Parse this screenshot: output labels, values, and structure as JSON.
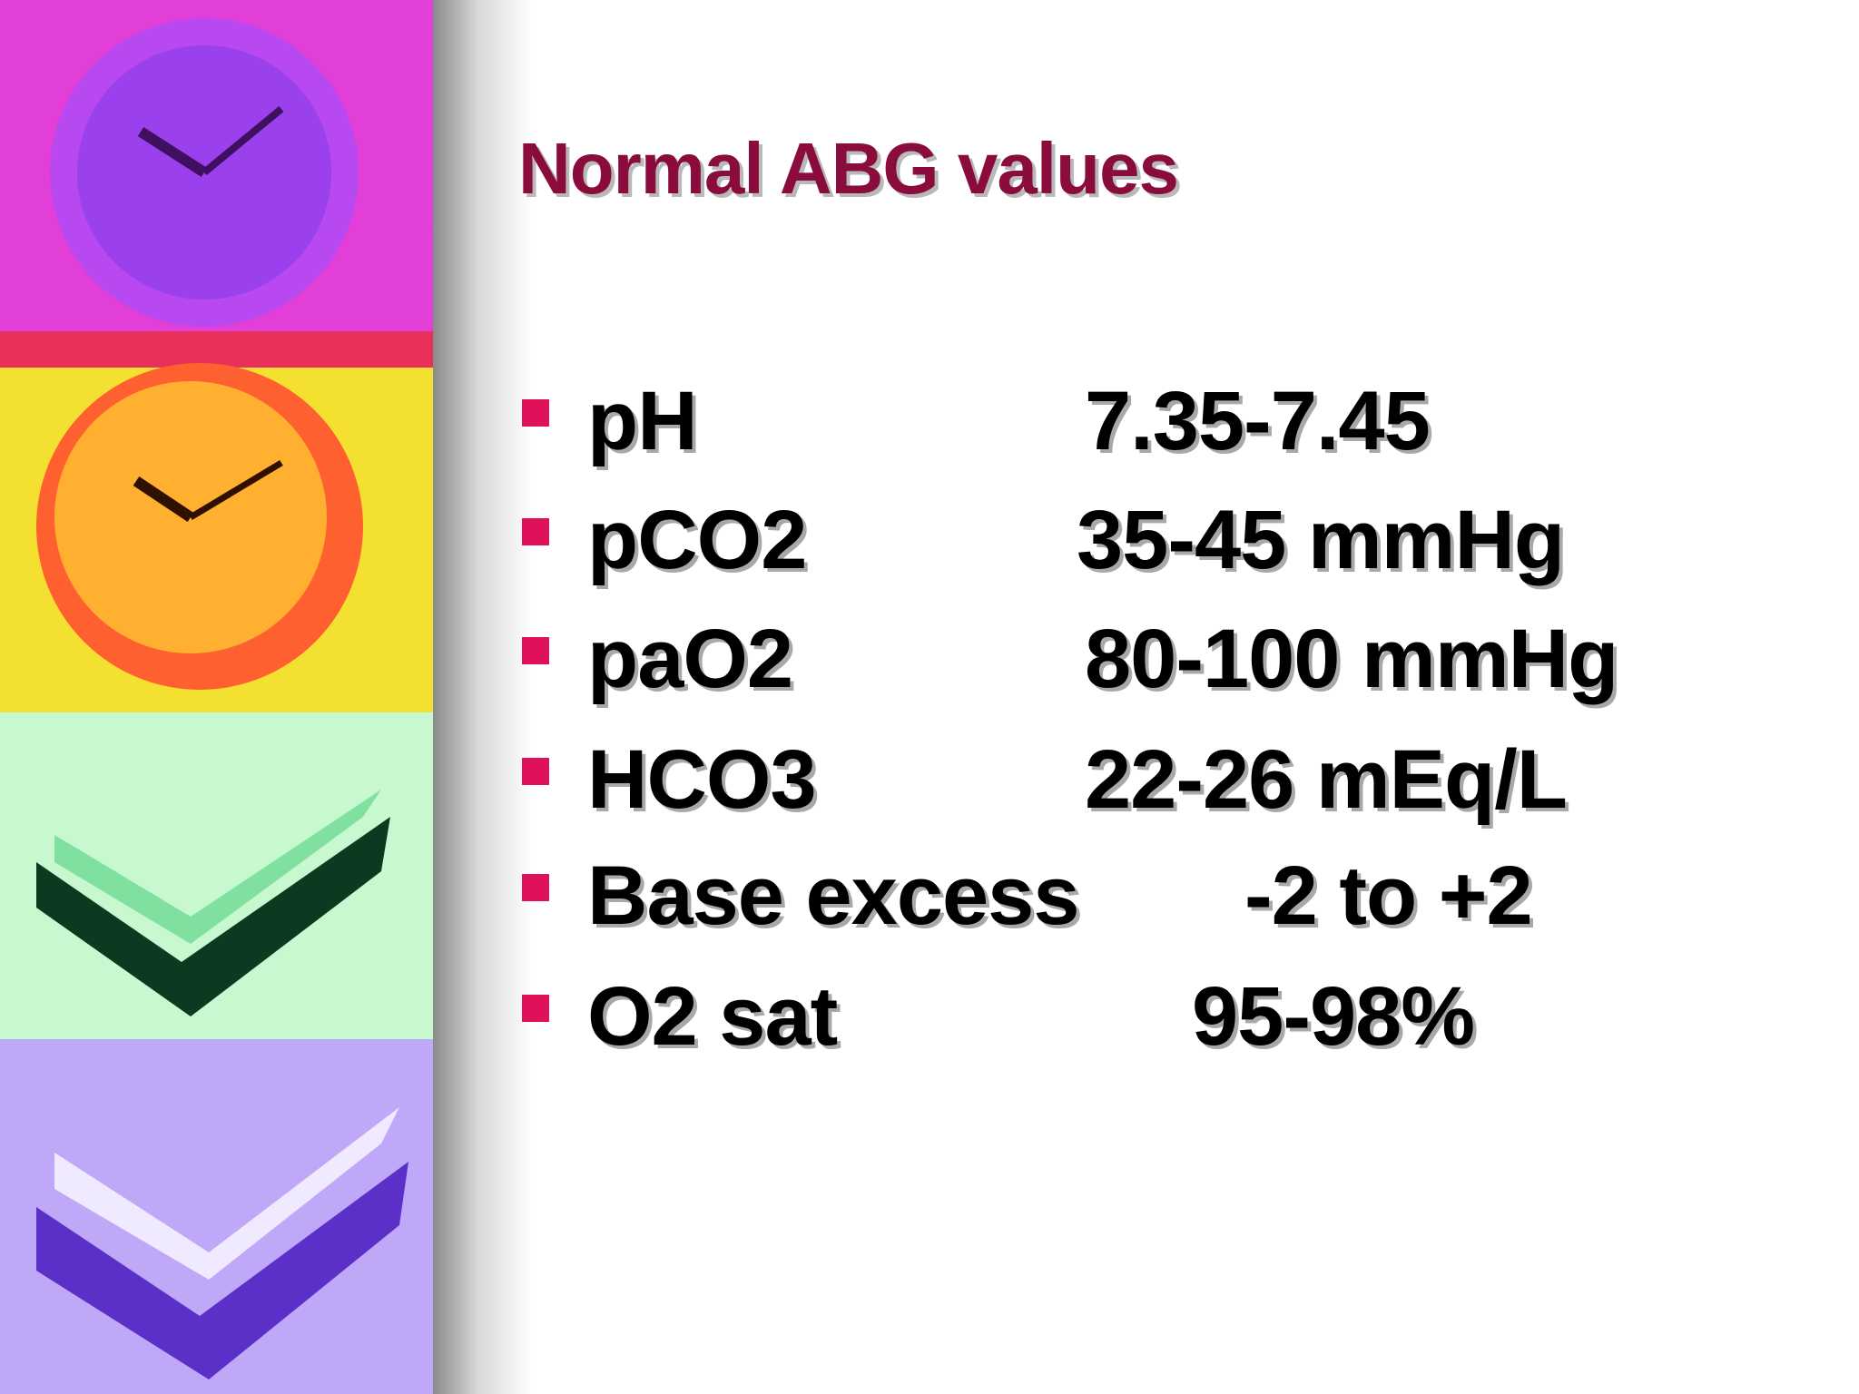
{
  "slide": {
    "title": "Normal ABG values",
    "items": [
      {
        "label": "pH",
        "value": "7.35-7.45"
      },
      {
        "label": "pCO2",
        "value": "35-45 mmHg"
      },
      {
        "label": "paO2",
        "value": "80-100 mmHg"
      },
      {
        "label": "HCO3",
        "value": "22-26 mEq/L"
      },
      {
        "label": "Base excess",
        "value": "-2 to +2"
      },
      {
        "label": "O2 sat",
        "value": "95-98%"
      }
    ]
  }
}
